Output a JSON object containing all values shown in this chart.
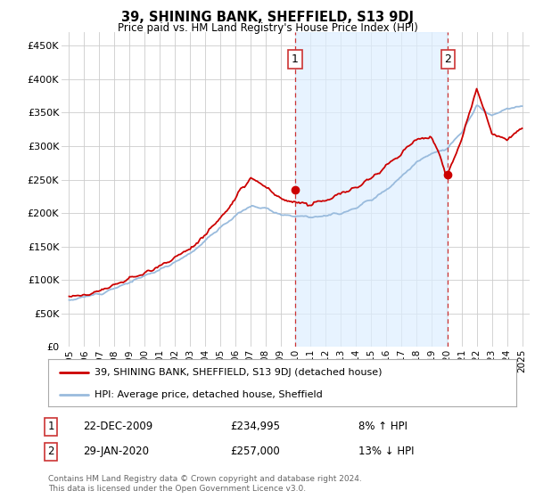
{
  "title": "39, SHINING BANK, SHEFFIELD, S13 9DJ",
  "subtitle": "Price paid vs. HM Land Registry's House Price Index (HPI)",
  "red_label": "39, SHINING BANK, SHEFFIELD, S13 9DJ (detached house)",
  "blue_label": "HPI: Average price, detached house, Sheffield",
  "annotation1_date": "22-DEC-2009",
  "annotation1_price": "£234,995",
  "annotation1_hpi": "8% ↑ HPI",
  "annotation1_year": 2009.97,
  "annotation2_date": "29-JAN-2020",
  "annotation2_price": "£257,000",
  "annotation2_hpi": "13% ↓ HPI",
  "annotation2_year": 2020.08,
  "footer": "Contains HM Land Registry data © Crown copyright and database right 2024.\nThis data is licensed under the Open Government Licence v3.0.",
  "ylim": [
    0,
    470000
  ],
  "yticks": [
    0,
    50000,
    100000,
    150000,
    200000,
    250000,
    300000,
    350000,
    400000,
    450000
  ],
  "ytick_labels": [
    "£0",
    "£50K",
    "£100K",
    "£150K",
    "£200K",
    "£250K",
    "£300K",
    "£350K",
    "£400K",
    "£450K"
  ],
  "xlim_start": 1994.5,
  "xlim_end": 2025.5,
  "xtick_years": [
    1995,
    1996,
    1997,
    1998,
    1999,
    2000,
    2001,
    2002,
    2003,
    2004,
    2005,
    2006,
    2007,
    2008,
    2009,
    2010,
    2011,
    2012,
    2013,
    2014,
    2015,
    2016,
    2017,
    2018,
    2019,
    2020,
    2021,
    2022,
    2023,
    2024,
    2025
  ],
  "red_color": "#cc0000",
  "blue_color": "#99bbdd",
  "shade_color": "#ddeeff",
  "vline_color": "#cc3333",
  "grid_color": "#cccccc",
  "background_color": "#ffffff",
  "marker1_year": 2009.97,
  "marker1_value": 234995,
  "marker2_year": 2020.08,
  "marker2_value": 257000,
  "hpi_key_years": [
    1995,
    1996,
    1997,
    1998,
    1999,
    2000,
    2001,
    2002,
    2003,
    2004,
    2005,
    2006,
    2007,
    2008,
    2009,
    2010,
    2011,
    2012,
    2013,
    2014,
    2015,
    2016,
    2017,
    2018,
    2019,
    2020,
    2021,
    2022,
    2023,
    2024,
    2025
  ],
  "hpi_key_vals": [
    70000,
    74000,
    80000,
    88000,
    96000,
    106000,
    115000,
    127000,
    140000,
    158000,
    178000,
    196000,
    210000,
    208000,
    198000,
    196000,
    195000,
    196000,
    200000,
    208000,
    220000,
    235000,
    255000,
    275000,
    290000,
    295000,
    320000,
    360000,
    345000,
    355000,
    360000
  ],
  "red_key_years": [
    1995,
    1996,
    1997,
    1998,
    1999,
    2000,
    2001,
    2002,
    2003,
    2004,
    2005,
    2006,
    2007,
    2008,
    2009,
    2010,
    2011,
    2012,
    2013,
    2014,
    2015,
    2016,
    2017,
    2018,
    2019,
    2020,
    2021,
    2022,
    2023,
    2024,
    2025
  ],
  "red_key_vals": [
    75000,
    79000,
    84000,
    92000,
    100000,
    112000,
    120000,
    133000,
    147000,
    168000,
    192000,
    220000,
    252000,
    240000,
    220000,
    215000,
    215000,
    220000,
    228000,
    238000,
    255000,
    270000,
    290000,
    308000,
    315000,
    255000,
    310000,
    385000,
    320000,
    310000,
    325000
  ]
}
